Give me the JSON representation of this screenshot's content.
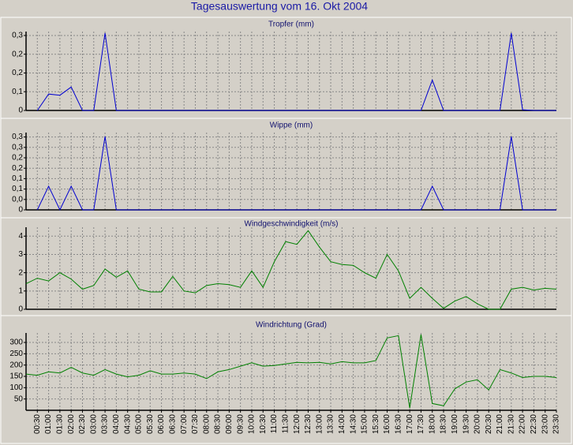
{
  "title": "Tagesauswertung vom 16. Okt 2004",
  "chart_data": [
    {
      "type": "line",
      "title": "Tropfer (mm)",
      "color": "#0000d0",
      "grid": true,
      "ylim": [
        0,
        0.33
      ],
      "yticks": [
        0,
        {
          "value": 0.08,
          "label": "0,1"
        },
        {
          "value": 0.16,
          "label": "0,2"
        },
        {
          "value": 0.24,
          "label": "0,2"
        },
        {
          "value": 0.32,
          "label": "0,3"
        }
      ],
      "values": [
        null,
        0,
        0.07,
        0.065,
        0.1,
        0,
        0,
        0.33,
        0,
        0,
        0,
        0,
        0,
        0,
        0,
        0,
        0,
        0,
        0,
        0,
        0,
        0,
        0,
        0,
        0,
        0,
        0,
        0,
        0,
        0,
        0,
        0,
        0,
        0,
        0,
        0,
        0.13,
        0,
        0,
        0,
        0,
        0,
        0,
        0.33,
        0.003,
        0,
        0,
        0
      ]
    },
    {
      "type": "line",
      "title": "Wippe (mm)",
      "color": "#0000d0",
      "grid": true,
      "ylim": [
        0,
        0.32
      ],
      "yticks": [
        0,
        {
          "value": 0.044,
          "label": "0,0"
        },
        {
          "value": 0.088,
          "label": "0,1"
        },
        {
          "value": 0.132,
          "label": "0,1"
        },
        {
          "value": 0.176,
          "label": "0,2"
        },
        {
          "value": 0.22,
          "label": "0,2"
        },
        {
          "value": 0.264,
          "label": "0,3"
        },
        {
          "value": 0.308,
          "label": "0,3"
        }
      ],
      "values": [
        null,
        0,
        0.1,
        0,
        0.1,
        0,
        0,
        0.31,
        0,
        0,
        0,
        0,
        0,
        0,
        0,
        0,
        0,
        0,
        0,
        0,
        0,
        0,
        0,
        0,
        0,
        0,
        0,
        0,
        0,
        0,
        0,
        0,
        0,
        0,
        0,
        0,
        0.1,
        0,
        0,
        0,
        0,
        0,
        0,
        0.31,
        0,
        0,
        0,
        0
      ]
    },
    {
      "type": "line",
      "title": "Windgeschwindigkeit (m/s)",
      "color": "#008000",
      "grid": true,
      "ylim": [
        0,
        4.4
      ],
      "yticks": [
        0,
        1,
        2,
        3,
        4
      ],
      "values": [
        1.4,
        1.7,
        1.55,
        2.0,
        1.65,
        1.1,
        1.3,
        2.2,
        1.75,
        2.1,
        1.1,
        0.95,
        0.95,
        1.8,
        1.0,
        0.9,
        1.3,
        1.4,
        1.35,
        1.2,
        2.1,
        1.2,
        2.6,
        3.7,
        3.55,
        4.3,
        3.4,
        2.6,
        2.45,
        2.4,
        2.0,
        1.7,
        3.0,
        2.1,
        0.6,
        1.2,
        0.6,
        0.05,
        0.45,
        0.7,
        0.3,
        0,
        0,
        1.1,
        1.2,
        1.05,
        1.15,
        1.1
      ]
    },
    {
      "type": "line",
      "title": "Windrichtung (Grad)",
      "color": "#008000",
      "grid": true,
      "ylim": [
        0,
        335
      ],
      "yticks": [
        50,
        100,
        150,
        200,
        250,
        300
      ],
      "categories": [
        null,
        "00:30",
        "01:00",
        "01:30",
        "02:00",
        "02:30",
        "03:00",
        "03:30",
        "04:00",
        "04:30",
        "05:00",
        "05:30",
        "06:00",
        "06:30",
        "07:00",
        "07:30",
        "08:00",
        "08:30",
        "09:00",
        "09:30",
        "10:00",
        "10:30",
        "11:00",
        "11:30",
        "12:00",
        "12:30",
        "13:00",
        "13:30",
        "14:00",
        "14:30",
        "15:00",
        "15:30",
        "16:00",
        "16:30",
        "17:00",
        "17:30",
        "18:00",
        "18:30",
        "19:00",
        "19:30",
        "20:00",
        "20:30",
        "21:00",
        "21:30",
        "22:00",
        "22:30",
        "23:00",
        "23:30"
      ],
      "values": [
        160,
        155,
        170,
        165,
        190,
        165,
        155,
        180,
        160,
        148,
        155,
        175,
        160,
        160,
        165,
        160,
        140,
        170,
        180,
        195,
        210,
        195,
        198,
        205,
        212,
        210,
        212,
        205,
        215,
        210,
        210,
        220,
        320,
        330,
        10,
        335,
        30,
        20,
        95,
        125,
        135,
        90,
        180,
        165,
        145,
        150,
        150,
        145
      ]
    }
  ]
}
